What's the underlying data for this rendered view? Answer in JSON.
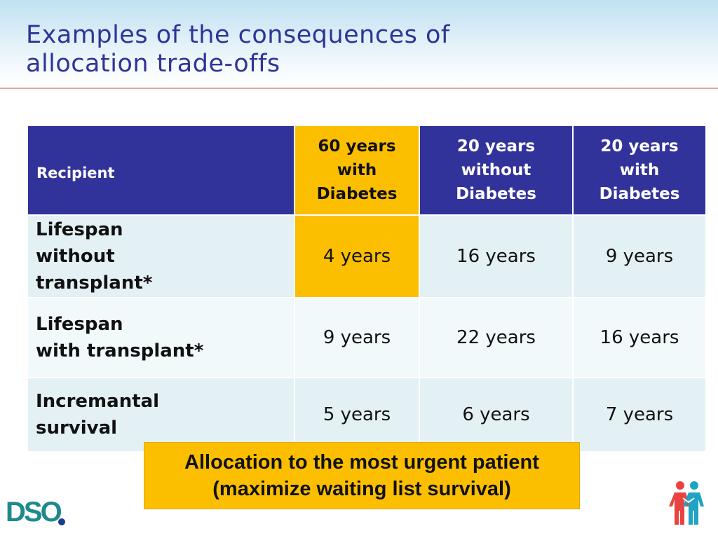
{
  "title": {
    "line1": "Examples of the consequences of",
    "line2": "allocation trade-offs"
  },
  "table": {
    "header": {
      "col0": "Recipient",
      "col1": [
        "60 years",
        "with",
        "Diabetes"
      ],
      "col2": [
        "20 years",
        "without",
        "Diabetes"
      ],
      "col3": [
        "20 years",
        "with",
        "Diabetes"
      ]
    },
    "rows": [
      {
        "label": [
          "Lifespan",
          "without",
          "transplant*"
        ],
        "values": [
          "4 years",
          "16 years",
          "9 years"
        ]
      },
      {
        "label": [
          "Lifespan",
          "with transplant*"
        ],
        "values": [
          "9 years",
          "22 years",
          "16 years"
        ]
      },
      {
        "label": [
          "Incremantal",
          "survival"
        ],
        "values": [
          "5 years",
          "6 years",
          "7 years"
        ]
      }
    ]
  },
  "callout": {
    "line1": "Allocation to the most urgent patient",
    "line2": "(maximize waiting list survival)"
  },
  "logo": {
    "text": "DSO",
    "icon": "dso-logo"
  },
  "people_icon": "people-icon",
  "colors": {
    "title": "#2f3496",
    "table_header": "#32339a",
    "highlight": "#fcbf00",
    "row_light": "#e4f1f4",
    "row_lighter": "#f2f9fb",
    "logo_teal": "#1e8a8c"
  }
}
